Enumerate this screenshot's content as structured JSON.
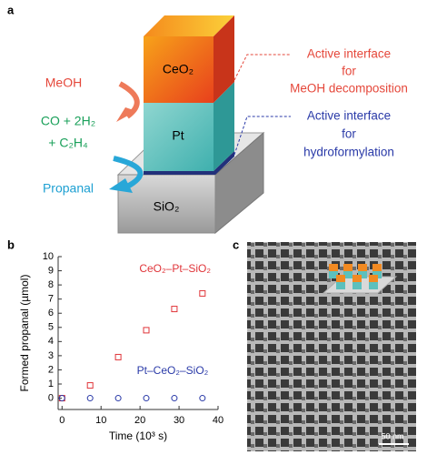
{
  "panel_labels": [
    "a",
    "b",
    "c"
  ],
  "diagram": {
    "layers": [
      "CeO₂",
      "Pt",
      "SiO₂"
    ],
    "reactant": "MeOH",
    "products_line1": "CO + 2H₂",
    "products_line2": "+ C₂H₄",
    "product": "Propanal",
    "annotation_top": [
      "Active interface",
      "for",
      "MeOH decomposition"
    ],
    "annotation_bottom": [
      "Active interface",
      "for",
      "hydroformylation"
    ]
  },
  "chart_data": {
    "type": "scatter",
    "xlabel": "Time (10³ s)",
    "ylabel": "Formed propanal (µmol)",
    "x": [
      0,
      7.2,
      14.4,
      21.6,
      28.8,
      36
    ],
    "series": [
      {
        "name": "CeO₂–Pt–SiO₂",
        "color": "#e0353a",
        "marker": "square",
        "values": [
          0,
          0.9,
          2.9,
          4.8,
          6.3,
          7.4
        ]
      },
      {
        "name": "Pt–CeO₂–SiO₂",
        "color": "#2a3aa8",
        "marker": "circle",
        "values": [
          0,
          0,
          0,
          0,
          0,
          0
        ]
      }
    ],
    "xlim": [
      -1,
      40
    ],
    "ylim": [
      -0.8,
      10
    ],
    "xticks": [
      0,
      10,
      20,
      30,
      40
    ],
    "yticks": [
      0,
      1,
      2,
      3,
      4,
      5,
      6,
      7,
      8,
      9,
      10
    ]
  },
  "micrograph": {
    "scale_bar": "50 nm"
  }
}
